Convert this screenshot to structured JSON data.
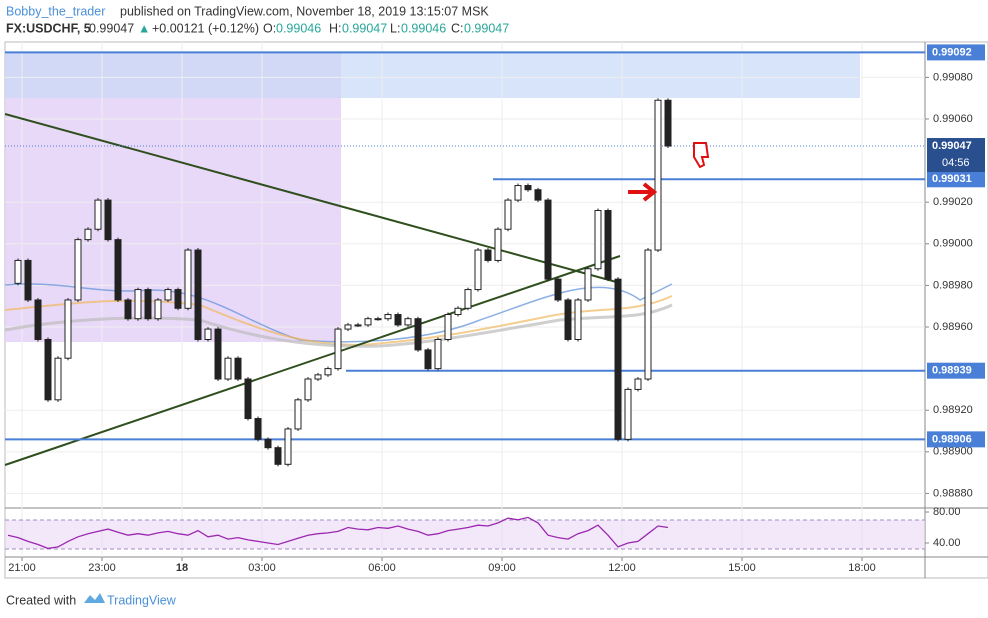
{
  "header": {
    "author": "Bobby_the_trader",
    "published": "published on TradingView.com, November 18, 2019 13:15:07 MSK",
    "symbol": "FX:USDCHF, 5",
    "last": "0.99047",
    "arrow": "▲",
    "change": "+0.00121 (+0.12%)",
    "o_label": "O:",
    "o": "0.99046",
    "h_label": "H:",
    "h": "0.99047",
    "l_label": "L:",
    "l": "0.99046",
    "c_label": "C:",
    "c": "0.99047"
  },
  "footer": {
    "created": "Created with",
    "brand": "TradingView"
  },
  "chart_data": {
    "type": "candlestick",
    "x": [
      -0.35,
      -0.1,
      0.15,
      0.4,
      0.65,
      0.9,
      1.15,
      1.4,
      1.65,
      1.9,
      2.15,
      2.4,
      2.65,
      2.9,
      3.15,
      3.4,
      3.65,
      3.9,
      4.15,
      4.4,
      4.65,
      4.9,
      5.15,
      5.4,
      5.65,
      5.9,
      6.15,
      6.4,
      6.65,
      6.9,
      7.15,
      7.4,
      7.65,
      7.9,
      8.15,
      8.4,
      8.65,
      8.9,
      9.15,
      9.4,
      9.65,
      9.9,
      10.15,
      10.4,
      10.65,
      10.9,
      11.15,
      11.4,
      11.65,
      11.9,
      12.15,
      12.4,
      12.65,
      12.9,
      13.15,
      13.4,
      13.65,
      13.9,
      14.15,
      14.4,
      14.65,
      14.9,
      15.15,
      15.4,
      15.65,
      15.9,
      16.15
    ],
    "close": [
      0.98981,
      0.98992,
      0.98973,
      0.98954,
      0.98925,
      0.98945,
      0.98973,
      0.99002,
      0.99007,
      0.99021,
      0.99002,
      0.98973,
      0.98964,
      0.98978,
      0.98964,
      0.98973,
      0.98978,
      0.98969,
      0.98997,
      0.98954,
      0.98959,
      0.98935,
      0.98945,
      0.98935,
      0.98916,
      0.98906,
      0.98902,
      0.98894,
      0.98911,
      0.98925,
      0.98935,
      0.98937,
      0.9894,
      0.98959,
      0.98961,
      0.98961,
      0.98964,
      0.98964,
      0.98966,
      0.98961,
      0.98964,
      0.98949,
      0.9894,
      0.98954,
      0.98966,
      0.98969,
      0.98978,
      0.98997,
      0.98992,
      0.99007,
      0.99021,
      0.99028,
      0.99026,
      0.99021,
      0.98983,
      0.98973,
      0.98954,
      0.98973,
      0.98988,
      0.99016,
      0.98983,
      0.98906,
      0.9893,
      0.98935,
      0.98997,
      0.99069,
      0.99047
    ],
    "up_color": "#ffffff",
    "down_color": "#222222",
    "xlim": [
      -0.425,
      22.575
    ],
    "xticks": [
      {
        "value": 0,
        "label": "21:00"
      },
      {
        "value": 2,
        "label": "23:00"
      },
      {
        "value": 4,
        "label": "18"
      },
      {
        "value": 6,
        "label": "03:00"
      },
      {
        "value": 9,
        "label": "06:00"
      },
      {
        "value": 12,
        "label": "09:00"
      },
      {
        "value": 15,
        "label": "12:00"
      },
      {
        "value": 18,
        "label": "15:00"
      },
      {
        "value": 21,
        "label": "18:00"
      }
    ],
    "ylim": [
      0.98873,
      0.99097
    ],
    "yticks": [
      {
        "value": 0.9908,
        "label": "0.99080"
      },
      {
        "value": 0.9906,
        "label": "0.99060"
      },
      {
        "value": 0.9902,
        "label": "0.99020"
      },
      {
        "value": 0.99,
        "label": "0.99000"
      },
      {
        "value": 0.9898,
        "label": "0.98980"
      },
      {
        "value": 0.9896,
        "label": "0.98960"
      },
      {
        "value": 0.9892,
        "label": "0.98920"
      },
      {
        "value": 0.989,
        "label": "0.98900"
      },
      {
        "value": 0.9888,
        "label": "0.98880"
      }
    ],
    "levels": [
      {
        "value": 0.99092,
        "label": "0.99092"
      },
      {
        "value": 0.99031,
        "label": "0.99031"
      },
      {
        "value": 0.98939,
        "label": "0.98939"
      },
      {
        "value": 0.98906,
        "label": "0.98906"
      }
    ],
    "level_color": "#4a7fd8",
    "last_price": {
      "value": 0.99047,
      "label": "0.99047"
    },
    "countdown": "04:56",
    "rsi": {
      "color": "#9c27b0",
      "ylim": [
        23.2,
        83.9
      ],
      "yticks": [
        {
          "value": 80,
          "label": "80.00"
        },
        {
          "value": 40,
          "label": "40.00"
        }
      ],
      "values": [
        50,
        47,
        42,
        38,
        33,
        35,
        42,
        48,
        52,
        55,
        58,
        54,
        50,
        52,
        50,
        53,
        55,
        52,
        50,
        56,
        48,
        50,
        45,
        47,
        44,
        42,
        40,
        38,
        42,
        46,
        50,
        52,
        53,
        55,
        60,
        58,
        57,
        60,
        59,
        62,
        58,
        55,
        50,
        52,
        56,
        58,
        60,
        63,
        62,
        66,
        72,
        70,
        73,
        66,
        50,
        47,
        45,
        52,
        56,
        63,
        50,
        35,
        40,
        42,
        52,
        62,
        60
      ]
    }
  }
}
